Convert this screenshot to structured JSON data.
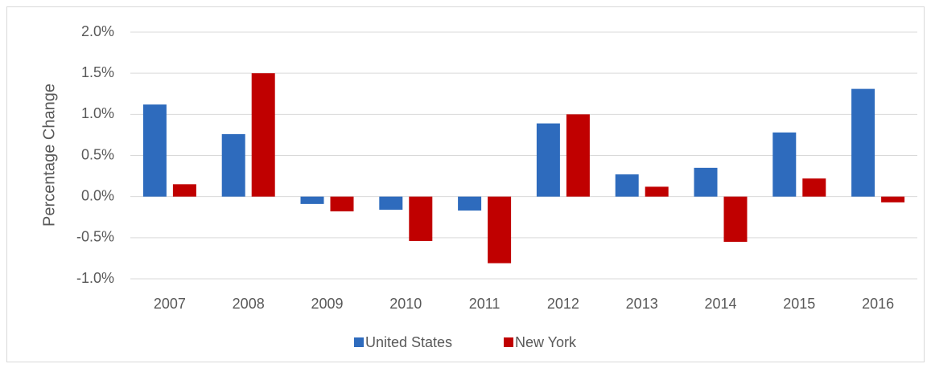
{
  "chart_data": {
    "type": "bar",
    "y_label": "Percentage Change",
    "categories": [
      "2007",
      "2008",
      "2009",
      "2010",
      "2011",
      "2012",
      "2013",
      "2014",
      "2015",
      "2016"
    ],
    "series": [
      {
        "name": "United States",
        "color": "#2e6bbd",
        "values": [
          1.12,
          0.76,
          -0.09,
          -0.16,
          -0.17,
          0.89,
          0.27,
          0.35,
          0.78,
          1.31
        ]
      },
      {
        "name": "New York",
        "color": "#c00000",
        "values": [
          0.15,
          1.5,
          -0.18,
          -0.54,
          -0.81,
          1.0,
          0.12,
          -0.55,
          0.22,
          -0.07
        ]
      }
    ],
    "ylim": [
      -1.0,
      2.0
    ],
    "yticks": [
      {
        "value": -1.0,
        "label": "-1.0%"
      },
      {
        "value": -0.5,
        "label": "-0.5%"
      },
      {
        "value": 0.0,
        "label": "0.0%"
      },
      {
        "value": 0.5,
        "label": "0.5%"
      },
      {
        "value": 1.0,
        "label": "1.0%"
      },
      {
        "value": 1.5,
        "label": "1.5%"
      },
      {
        "value": 2.0,
        "label": "2.0%"
      }
    ],
    "grid": true,
    "legend": "bottom"
  }
}
